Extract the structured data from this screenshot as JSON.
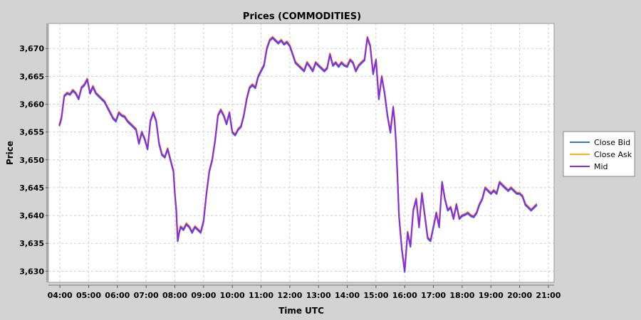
{
  "chart_data": {
    "type": "line",
    "title": "Prices (COMMODITIES)",
    "xlabel": "Time UTC",
    "ylabel": "Price",
    "x_ticks": [
      "04:00",
      "05:00",
      "06:00",
      "07:00",
      "08:00",
      "09:00",
      "10:00",
      "11:00",
      "12:00",
      "13:00",
      "14:00",
      "15:00",
      "16:00",
      "17:00",
      "18:00",
      "19:00",
      "20:00",
      "21:00"
    ],
    "xlim_hours": [
      3.6,
      21.2
    ],
    "ylim": [
      3628,
      3674.5
    ],
    "y_ticks": [
      3630,
      3635,
      3640,
      3645,
      3650,
      3655,
      3660,
      3665,
      3670
    ],
    "y_tick_labels": [
      "3,630",
      "3,635",
      "3,640",
      "3,645",
      "3,650",
      "3,655",
      "3,660",
      "3,665",
      "3,670"
    ],
    "grid": true,
    "legend_position": "right",
    "series": [
      {
        "name": "Close Bid",
        "color": "#3b6fe0",
        "offset": -0.15
      },
      {
        "name": "Close Ask",
        "color": "#ffb020",
        "offset": 0.15
      },
      {
        "name": "Mid",
        "color": "#8a2be2",
        "offset": 0
      }
    ],
    "x_hours": [
      3.98,
      4.05,
      4.15,
      4.25,
      4.35,
      4.45,
      4.55,
      4.65,
      4.75,
      4.85,
      4.95,
      5.05,
      5.15,
      5.25,
      5.35,
      5.45,
      5.55,
      5.65,
      5.75,
      5.85,
      5.95,
      6.05,
      6.15,
      6.25,
      6.35,
      6.45,
      6.55,
      6.65,
      6.75,
      6.85,
      6.95,
      7.05,
      7.15,
      7.25,
      7.35,
      7.45,
      7.55,
      7.65,
      7.75,
      7.85,
      7.95,
      8.0,
      8.05,
      8.1,
      8.15,
      8.2,
      8.3,
      8.4,
      8.5,
      8.6,
      8.7,
      8.8,
      8.9,
      9.0,
      9.1,
      9.2,
      9.3,
      9.4,
      9.5,
      9.6,
      9.7,
      9.8,
      9.9,
      10.0,
      10.1,
      10.2,
      10.3,
      10.4,
      10.5,
      10.6,
      10.7,
      10.8,
      10.9,
      11.0,
      11.1,
      11.2,
      11.3,
      11.4,
      11.5,
      11.6,
      11.7,
      11.8,
      11.9,
      12.0,
      12.1,
      12.2,
      12.3,
      12.4,
      12.5,
      12.6,
      12.7,
      12.8,
      12.9,
      13.0,
      13.1,
      13.2,
      13.3,
      13.4,
      13.5,
      13.6,
      13.7,
      13.8,
      13.9,
      14.0,
      14.1,
      14.2,
      14.3,
      14.4,
      14.5,
      14.6,
      14.7,
      14.8,
      14.9,
      15.0,
      15.1,
      15.2,
      15.3,
      15.4,
      15.5,
      15.6,
      15.65,
      15.7,
      15.75,
      15.8,
      15.9,
      16.0,
      16.1,
      16.2,
      16.3,
      16.4,
      16.5,
      16.6,
      16.7,
      16.8,
      16.9,
      17.0,
      17.1,
      17.2,
      17.3,
      17.4,
      17.5,
      17.6,
      17.7,
      17.8,
      17.9,
      18.0,
      18.1,
      18.2,
      18.3,
      18.4,
      18.5,
      18.6,
      18.7,
      18.8,
      18.9,
      19.0,
      19.1,
      19.2,
      19.3,
      19.4,
      19.5,
      19.6,
      19.7,
      19.8,
      19.9,
      20.0,
      20.1,
      20.2,
      20.3,
      20.4,
      20.5,
      20.6
    ],
    "mid_values": [
      3656.2,
      3657.5,
      3661.5,
      3662.0,
      3661.8,
      3662.5,
      3662.0,
      3661.0,
      3663.0,
      3663.5,
      3664.5,
      3662.0,
      3663.2,
      3662.0,
      3661.5,
      3661.0,
      3660.5,
      3659.5,
      3658.5,
      3657.5,
      3657.0,
      3658.5,
      3658.0,
      3657.8,
      3657.0,
      3656.5,
      3656.0,
      3655.5,
      3653.0,
      3655.0,
      3653.8,
      3652.0,
      3657.0,
      3658.5,
      3657.0,
      3653.0,
      3651.0,
      3650.5,
      3652.0,
      3650.0,
      3648.0,
      3644.0,
      3641.0,
      3635.5,
      3637.0,
      3638.0,
      3637.5,
      3638.5,
      3638.0,
      3637.0,
      3638.0,
      3637.5,
      3637.0,
      3639.0,
      3644.0,
      3648.0,
      3650.0,
      3653.5,
      3658.0,
      3659.0,
      3658.0,
      3656.5,
      3658.5,
      3655.0,
      3654.5,
      3655.5,
      3656.0,
      3658.0,
      3661.0,
      3663.0,
      3663.5,
      3663.0,
      3665.0,
      3666.0,
      3667.0,
      3670.0,
      3671.5,
      3672.0,
      3671.5,
      3671.0,
      3671.5,
      3670.8,
      3671.2,
      3670.5,
      3669.0,
      3667.5,
      3667.0,
      3666.5,
      3666.0,
      3667.5,
      3666.8,
      3666.0,
      3667.5,
      3667.0,
      3666.5,
      3666.0,
      3666.5,
      3669.0,
      3667.0,
      3667.5,
      3666.8,
      3667.5,
      3667.0,
      3666.8,
      3668.0,
      3667.5,
      3666.0,
      3667.0,
      3667.5,
      3668.0,
      3672.0,
      3670.5,
      3665.5,
      3668.0,
      3661.0,
      3665.0,
      3662.0,
      3658.0,
      3655.0,
      3659.5,
      3657.0,
      3653.0,
      3647.0,
      3640.0,
      3634.0,
      3630.0,
      3637.0,
      3634.5,
      3641.0,
      3643.0,
      3638.0,
      3644.0,
      3640.0,
      3636.0,
      3635.5,
      3638.0,
      3640.5,
      3638.0,
      3646.0,
      3643.0,
      3641.0,
      3641.5,
      3639.5,
      3642.0,
      3639.5,
      3640.0,
      3640.2,
      3640.5,
      3640.0,
      3639.8,
      3640.5,
      3642.0,
      3643.0,
      3645.0,
      3644.5,
      3644.0,
      3644.5,
      3644.0,
      3646.0,
      3645.5,
      3645.0,
      3644.5,
      3645.0,
      3644.5,
      3644.0,
      3644.0,
      3643.5,
      3642.0,
      3641.5,
      3641.0,
      3641.5,
      3642.0,
      3642.5
    ]
  },
  "legend": {
    "items": [
      "Close Bid",
      "Close Ask",
      "Mid"
    ]
  }
}
